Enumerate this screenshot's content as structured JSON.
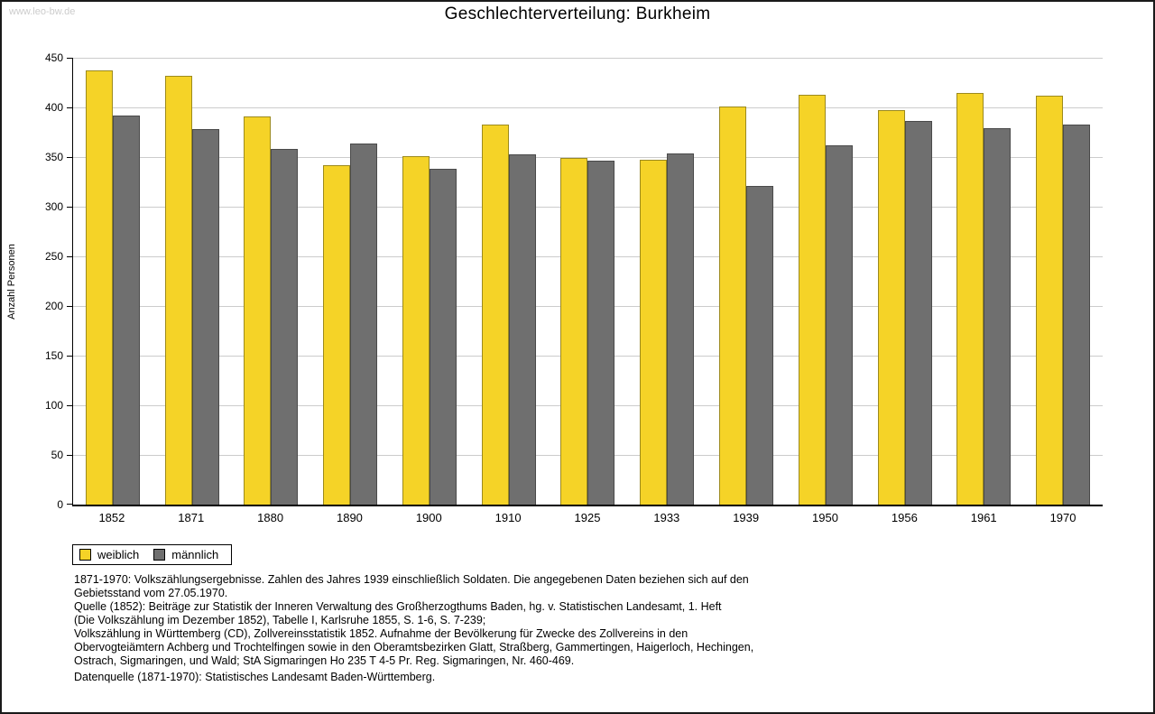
{
  "page": {
    "watermark": "www.leo-bw.de"
  },
  "chart_data": {
    "type": "bar",
    "title": "Geschlechterverteilung: Burkheim",
    "xlabel": "",
    "ylabel": "Anzahl Personen",
    "ylim": [
      0,
      450
    ],
    "ytick_step": 50,
    "grid": true,
    "grid_color": "#cccccc",
    "legend_position": "bottom-left",
    "categories": [
      "1852",
      "1871",
      "1880",
      "1890",
      "1900",
      "1910",
      "1925",
      "1933",
      "1939",
      "1950",
      "1956",
      "1961",
      "1970"
    ],
    "series": [
      {
        "name": "weiblich",
        "color": "#F5D327",
        "border_color": "#9C8A1E",
        "values": [
          437,
          432,
          391,
          342,
          351,
          383,
          349,
          347,
          401,
          413,
          397,
          415,
          412
        ]
      },
      {
        "name": "männlich",
        "color": "#6F6F6F",
        "border_color": "#4A4A4A",
        "values": [
          392,
          378,
          358,
          364,
          338,
          353,
          346,
          354,
          321,
          362,
          386,
          379,
          383
        ]
      }
    ]
  },
  "footer": {
    "notes": "1871-1970: Volkszählungsergebnisse. Zahlen des Jahres 1939 einschließlich Soldaten. Die angegebenen Daten beziehen sich auf den\nGebietsstand vom 27.05.1970.\nQuelle (1852): Beiträge zur Statistik der Inneren Verwaltung des Großherzogthums Baden, hg. v. Statistischen Landesamt, 1. Heft\n(Die Volkszählung im Dezember 1852), Tabelle I, Karlsruhe 1855, S. 1-6, S. 7-239;\nVolkszählung in Württemberg (CD), Zollvereinsstatistik 1852. Aufnahme der Bevölkerung für Zwecke des Zollvereins in den\nObervogteiämtern Achberg und Trochtelfingen sowie in den Oberamtsbezirken Glatt, Straßberg, Gammertingen, Haigerloch, Hechingen,\nOstrach, Sigmaringen, und Wald; StA Sigmaringen Ho 235 T 4-5 Pr. Reg. Sigmaringen, Nr. 460-469.",
    "datasource": "Datenquelle (1871-1970): Statistisches Landesamt Baden-Württemberg."
  }
}
